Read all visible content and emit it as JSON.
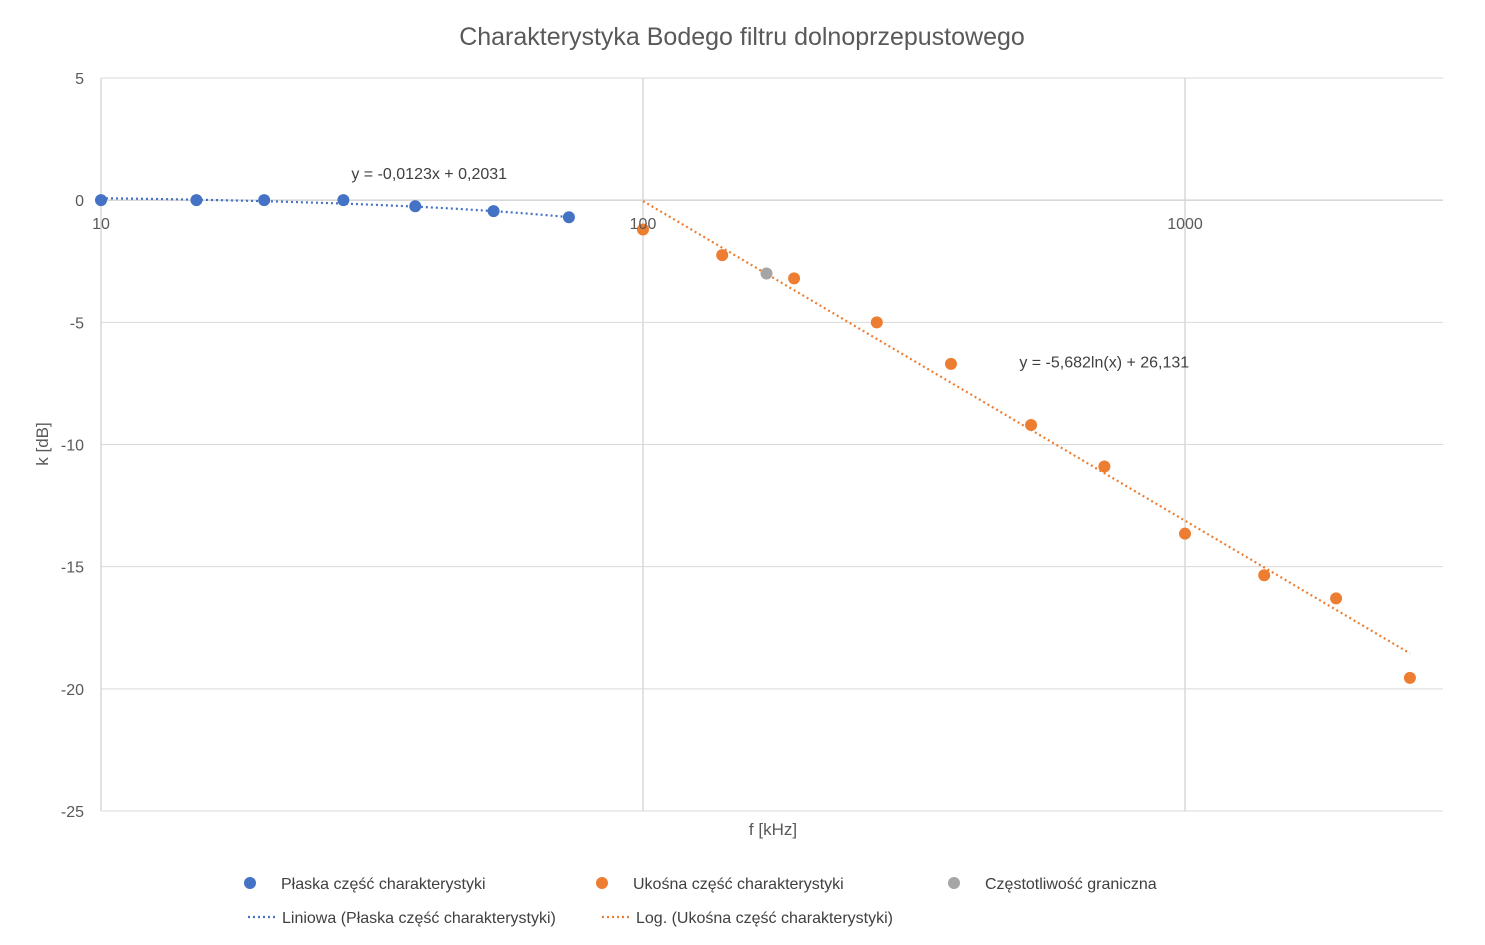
{
  "chart_data": {
    "type": "scatter",
    "title": "Charakterystyka Bodego filtru dolnoprzepustowego",
    "xlabel": "f [kHz]",
    "ylabel": "k [dB]",
    "x_scale": "log",
    "xlim": [
      10,
      2700
    ],
    "ylim": [
      -25,
      5
    ],
    "x_ticks": [
      10,
      100,
      1000
    ],
    "x_tick_labels": [
      "10",
      "100",
      "1000"
    ],
    "y_ticks": [
      5,
      0,
      -5,
      -10,
      -15,
      -20,
      -25
    ],
    "y_tick_labels": [
      "5",
      "0",
      "-5",
      "-10",
      "-15",
      "-20",
      "-25"
    ],
    "grid": true,
    "legend_position": "bottom",
    "series": [
      {
        "name": "Płaska część charakterystyki",
        "color": "#4472C4",
        "x": [
          10,
          15,
          20,
          28,
          38,
          53,
          73
        ],
        "y": [
          0.0,
          0.0,
          0.0,
          0.0,
          -0.25,
          -0.45,
          -0.7
        ]
      },
      {
        "name": "Ukośna część charakterystyki",
        "color": "#ED7D31",
        "x": [
          100,
          140,
          190,
          270,
          370,
          520,
          710,
          1000,
          1400,
          1900,
          2600
        ],
        "y": [
          -1.2,
          -2.25,
          -3.2,
          -5.0,
          -6.7,
          -9.2,
          -10.9,
          -13.65,
          -15.35,
          -16.3,
          -19.55
        ]
      },
      {
        "name": "Częstotliwość graniczna",
        "color": "#A5A5A5",
        "x": [
          169
        ],
        "y": [
          -3.0
        ]
      }
    ],
    "trendlines": [
      {
        "name": "Liniowa (Płaska część charakterystyki)",
        "color": "#4472C4",
        "type": "linear",
        "slope": -0.0123,
        "intercept": 0.2031,
        "x_range": [
          10,
          73
        ],
        "equation": "y = -0,0123x + 0,2031"
      },
      {
        "name": "Log. (Ukośna część charakterystyki)",
        "color": "#ED7D31",
        "type": "log",
        "coef": -5.682,
        "intercept": 26.131,
        "x_range": [
          100,
          2600
        ],
        "equation": "y = -5,682ln(x) + 26,131"
      }
    ]
  }
}
